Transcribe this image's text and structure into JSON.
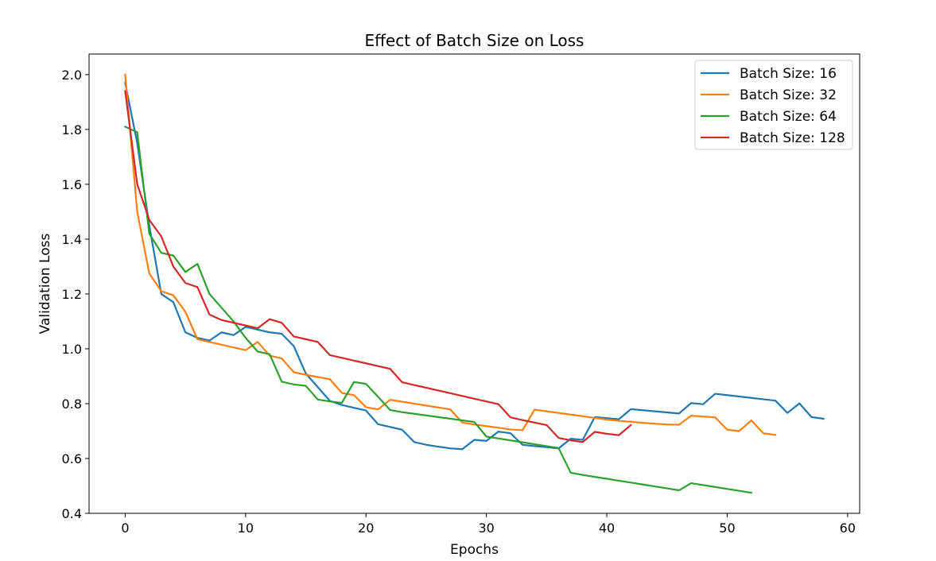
{
  "chart_data": {
    "type": "line",
    "title": "Effect of Batch Size on Loss",
    "xlabel": "Epochs",
    "ylabel": "Validation Loss",
    "xlim": [
      -3,
      61
    ],
    "ylim": [
      0.4,
      2.075
    ],
    "xticks": [
      0,
      10,
      20,
      30,
      40,
      50,
      60
    ],
    "yticks": [
      0.4,
      0.6,
      0.8,
      1.0,
      1.2,
      1.4,
      1.6,
      1.8,
      2.0
    ],
    "grid": false,
    "legend_position": "top-right",
    "series": [
      {
        "name": "Batch Size: 16",
        "color": "#1f77b4",
        "x": [
          0,
          1,
          2,
          3,
          4,
          5,
          6,
          7,
          8,
          9,
          10,
          11,
          12,
          13,
          14,
          15,
          16,
          17,
          18,
          19,
          20,
          21,
          22,
          23,
          24,
          25,
          26,
          27,
          28,
          29,
          30,
          31,
          32,
          33,
          34,
          35,
          36,
          37,
          38,
          39,
          40,
          41,
          42,
          43,
          44,
          45,
          46,
          47,
          48,
          49,
          50,
          51,
          52,
          53,
          54,
          55,
          56,
          57,
          58
        ],
        "y": [
          1.97,
          1.75,
          1.45,
          1.2,
          1.17,
          1.06,
          1.04,
          1.03,
          1.06,
          1.05,
          1.08,
          1.07,
          1.06,
          1.055,
          1.01,
          0.91,
          0.86,
          0.81,
          0.795,
          0.785,
          0.775,
          0.725,
          0.715,
          0.705,
          0.66,
          0.65,
          0.643,
          0.637,
          0.634,
          0.668,
          0.664,
          0.698,
          0.692,
          0.65,
          0.645,
          0.641,
          0.637,
          0.672,
          0.668,
          0.751,
          0.747,
          0.743,
          0.78,
          0.776,
          0.772,
          0.768,
          0.764,
          0.802,
          0.798,
          0.836,
          0.831,
          0.826,
          0.821,
          0.816,
          0.811,
          0.766,
          0.801,
          0.751,
          0.745
        ]
      },
      {
        "name": "Batch Size: 32",
        "color": "#ff7f0e",
        "x": [
          0,
          1,
          2,
          3,
          4,
          5,
          6,
          7,
          8,
          9,
          10,
          11,
          12,
          13,
          14,
          15,
          16,
          17,
          18,
          19,
          20,
          21,
          22,
          23,
          24,
          25,
          26,
          27,
          28,
          29,
          30,
          31,
          32,
          33,
          34,
          35,
          36,
          37,
          38,
          39,
          40,
          41,
          42,
          43,
          44,
          45,
          46,
          47,
          48,
          49,
          50,
          51,
          52,
          53,
          54
        ],
        "y": [
          2.0,
          1.5,
          1.275,
          1.21,
          1.195,
          1.135,
          1.035,
          1.025,
          1.015,
          1.005,
          0.995,
          1.025,
          0.975,
          0.965,
          0.915,
          0.905,
          0.897,
          0.889,
          0.839,
          0.831,
          0.787,
          0.779,
          0.814,
          0.807,
          0.8,
          0.793,
          0.786,
          0.779,
          0.731,
          0.724,
          0.718,
          0.712,
          0.706,
          0.703,
          0.778,
          0.772,
          0.766,
          0.76,
          0.754,
          0.748,
          0.742,
          0.737,
          0.734,
          0.73,
          0.727,
          0.724,
          0.723,
          0.756,
          0.753,
          0.75,
          0.705,
          0.7,
          0.739,
          0.692,
          0.686
        ]
      },
      {
        "name": "Batch Size: 64",
        "color": "#2ca02c",
        "x": [
          0,
          1,
          2,
          3,
          4,
          5,
          6,
          7,
          8,
          9,
          10,
          11,
          12,
          13,
          14,
          15,
          16,
          17,
          18,
          19,
          20,
          21,
          22,
          23,
          24,
          25,
          26,
          27,
          28,
          29,
          30,
          31,
          32,
          33,
          34,
          35,
          36,
          37,
          38,
          39,
          40,
          41,
          42,
          43,
          44,
          45,
          46,
          47,
          48,
          49,
          50,
          51,
          52
        ],
        "y": [
          1.81,
          1.79,
          1.42,
          1.35,
          1.34,
          1.28,
          1.31,
          1.2,
          1.15,
          1.1,
          1.04,
          0.99,
          0.98,
          0.88,
          0.87,
          0.865,
          0.815,
          0.808,
          0.803,
          0.879,
          0.872,
          0.825,
          0.777,
          0.769,
          0.763,
          0.757,
          0.751,
          0.745,
          0.739,
          0.733,
          0.68,
          0.673,
          0.666,
          0.659,
          0.652,
          0.645,
          0.638,
          0.548,
          0.54,
          0.533,
          0.526,
          0.519,
          0.512,
          0.505,
          0.498,
          0.491,
          0.484,
          0.51,
          0.503,
          0.496,
          0.489,
          0.482,
          0.475
        ]
      },
      {
        "name": "Batch Size: 128",
        "color": "#d62728",
        "x": [
          0,
          1,
          2,
          3,
          4,
          5,
          6,
          7,
          8,
          9,
          10,
          11,
          12,
          13,
          14,
          15,
          16,
          17,
          18,
          19,
          20,
          21,
          22,
          23,
          24,
          25,
          26,
          27,
          28,
          29,
          30,
          31,
          32,
          33,
          34,
          35,
          36,
          37,
          38,
          39,
          40,
          41,
          42
        ],
        "y": [
          1.94,
          1.6,
          1.47,
          1.41,
          1.3,
          1.24,
          1.225,
          1.125,
          1.105,
          1.095,
          1.085,
          1.075,
          1.108,
          1.095,
          1.045,
          1.035,
          1.025,
          0.977,
          0.967,
          0.957,
          0.947,
          0.937,
          0.927,
          0.878,
          0.868,
          0.858,
          0.848,
          0.838,
          0.828,
          0.818,
          0.808,
          0.798,
          0.75,
          0.74,
          0.731,
          0.722,
          0.675,
          0.666,
          0.66,
          0.697,
          0.69,
          0.685,
          0.722
        ]
      }
    ]
  }
}
